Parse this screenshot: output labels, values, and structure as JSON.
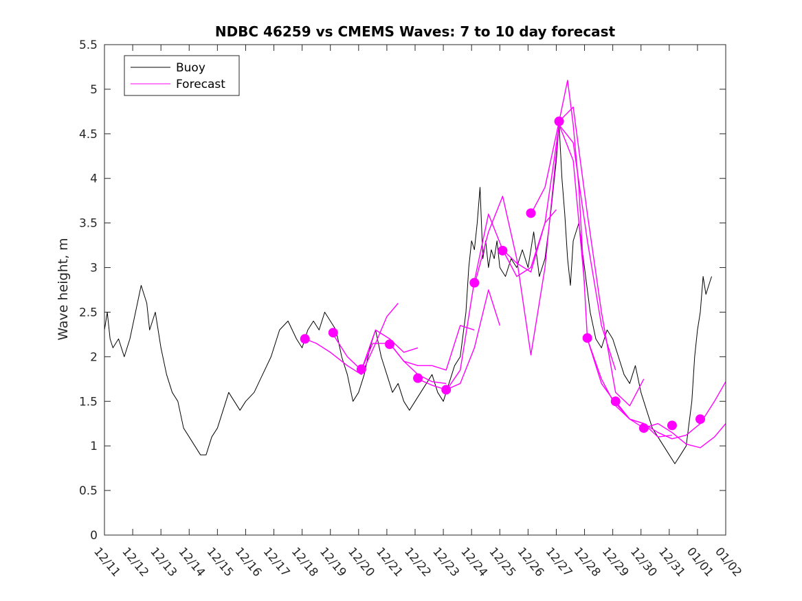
{
  "chart_data": {
    "type": "line",
    "title": "NDBC 46259 vs CMEMS Waves: 7 to 10 day forecast",
    "xlabel": "",
    "ylabel": "Wave height, m",
    "xlim": [
      0,
      22
    ],
    "ylim": [
      0,
      5.5
    ],
    "yticks": [
      0,
      0.5,
      1,
      1.5,
      2,
      2.5,
      3,
      3.5,
      4,
      4.5,
      5,
      5.5
    ],
    "ytick_labels": [
      "0",
      "0.5",
      "1",
      "1.5",
      "2",
      "2.5",
      "3",
      "3.5",
      "4",
      "4.5",
      "5",
      "5.5"
    ],
    "xticks": [
      0,
      1,
      2,
      3,
      4,
      5,
      6,
      7,
      8,
      9,
      10,
      11,
      12,
      13,
      14,
      15,
      16,
      17,
      18,
      19,
      20,
      21,
      22
    ],
    "xtick_labels": [
      "12/11",
      "12/12",
      "12/13",
      "12/14",
      "12/15",
      "12/16",
      "12/17",
      "12/18",
      "12/19",
      "12/20",
      "12/21",
      "12/22",
      "12/23",
      "12/24",
      "12/25",
      "12/26",
      "12/27",
      "12/28",
      "12/29",
      "12/30",
      "12/31",
      "01/01",
      "01/02"
    ],
    "legend": {
      "location": "top-left",
      "entries": [
        "Buoy",
        "Forecast"
      ]
    },
    "colors": {
      "buoy": "#000000",
      "forecast": "#ff00ff"
    },
    "series": [
      {
        "name": "Buoy",
        "x": [
          0.0,
          0.1,
          0.2,
          0.3,
          0.5,
          0.7,
          0.9,
          1.1,
          1.3,
          1.5,
          1.6,
          1.8,
          2.0,
          2.2,
          2.4,
          2.6,
          2.8,
          3.0,
          3.2,
          3.4,
          3.6,
          3.8,
          4.0,
          4.2,
          4.4,
          4.6,
          4.8,
          5.0,
          5.3,
          5.6,
          5.9,
          6.2,
          6.5,
          6.8,
          7.0,
          7.2,
          7.4,
          7.6,
          7.8,
          8.0,
          8.2,
          8.4,
          8.6,
          8.8,
          9.0,
          9.2,
          9.4,
          9.6,
          9.8,
          10.0,
          10.2,
          10.4,
          10.6,
          10.8,
          11.0,
          11.2,
          11.4,
          11.6,
          11.8,
          12.0,
          12.2,
          12.4,
          12.6,
          12.8,
          12.9,
          13.0,
          13.1,
          13.2,
          13.3,
          13.4,
          13.5,
          13.6,
          13.7,
          13.8,
          13.9,
          14.0,
          14.2,
          14.4,
          14.6,
          14.8,
          15.0,
          15.2,
          15.4,
          15.6,
          15.8,
          16.0,
          16.1,
          16.2,
          16.3,
          16.4,
          16.5,
          16.6,
          16.8,
          17.0,
          17.2,
          17.4,
          17.6,
          17.8,
          18.0,
          18.2,
          18.4,
          18.6,
          18.8,
          19.0,
          19.2,
          19.4,
          19.6,
          19.8,
          20.0,
          20.2,
          20.4,
          20.6,
          20.8,
          20.9,
          21.0,
          21.1,
          21.2,
          21.3,
          21.4,
          21.5
        ],
        "y": [
          2.3,
          2.5,
          2.2,
          2.1,
          2.2,
          2.0,
          2.2,
          2.5,
          2.8,
          2.6,
          2.3,
          2.5,
          2.1,
          1.8,
          1.6,
          1.5,
          1.2,
          1.1,
          1.0,
          0.9,
          0.9,
          1.1,
          1.2,
          1.4,
          1.6,
          1.5,
          1.4,
          1.5,
          1.6,
          1.8,
          2.0,
          2.3,
          2.4,
          2.2,
          2.1,
          2.3,
          2.4,
          2.3,
          2.5,
          2.4,
          2.3,
          2.0,
          1.8,
          1.5,
          1.6,
          1.8,
          2.1,
          2.3,
          2.0,
          1.8,
          1.6,
          1.7,
          1.5,
          1.4,
          1.5,
          1.6,
          1.7,
          1.8,
          1.6,
          1.5,
          1.7,
          1.9,
          2.0,
          2.5,
          3.0,
          3.3,
          3.2,
          3.5,
          3.9,
          3.1,
          3.3,
          3.0,
          3.2,
          3.1,
          3.3,
          3.0,
          2.9,
          3.1,
          3.0,
          3.2,
          3.0,
          3.4,
          2.9,
          3.1,
          3.6,
          4.2,
          4.6,
          4.0,
          3.6,
          3.1,
          2.8,
          3.3,
          3.5,
          3.0,
          2.5,
          2.2,
          2.1,
          2.3,
          2.2,
          2.0,
          1.8,
          1.7,
          1.9,
          1.6,
          1.4,
          1.2,
          1.1,
          1.0,
          0.9,
          0.8,
          0.9,
          1.0,
          1.5,
          2.0,
          2.3,
          2.5,
          2.9,
          2.7,
          2.8,
          2.9
        ]
      },
      {
        "name": "Forecast",
        "segments": [
          {
            "x": [
              7.1,
              7.5,
              8.0,
              8.6,
              9.1,
              9.6,
              10.0,
              10.4
            ],
            "y": [
              2.2,
              2.15,
              2.05,
              1.9,
              1.8,
              2.15,
              2.45,
              2.6
            ]
          },
          {
            "x": [
              8.1,
              8.6,
              9.1,
              9.6,
              10.1,
              10.6,
              11.1
            ],
            "y": [
              2.25,
              2.0,
              1.85,
              2.3,
              2.2,
              2.05,
              2.1
            ]
          },
          {
            "x": [
              9.1,
              9.5,
              10.1,
              10.6,
              11.1,
              11.6,
              12.1
            ],
            "y": [
              1.85,
              2.15,
              2.15,
              1.95,
              1.8,
              1.72,
              1.7
            ]
          },
          {
            "x": [
              10.1,
              10.6,
              11.1,
              11.6,
              12.1,
              12.6,
              13.1
            ],
            "y": [
              2.15,
              1.95,
              1.9,
              1.9,
              1.85,
              2.35,
              2.3
            ]
          },
          {
            "x": [
              11.1,
              11.6,
              12.1,
              12.6,
              13.1,
              13.6,
              14.0
            ],
            "y": [
              1.75,
              1.68,
              1.63,
              1.7,
              2.1,
              2.75,
              2.35
            ]
          },
          {
            "x": [
              12.1,
              12.6,
              13.1,
              13.6,
              14.1,
              14.6,
              15.1,
              15.6,
              16.0
            ],
            "y": [
              1.62,
              1.85,
              2.85,
              3.6,
              3.2,
              2.9,
              3.0,
              3.5,
              3.65
            ]
          },
          {
            "x": [
              13.1,
              13.6,
              14.1,
              14.6,
              15.1,
              15.6,
              16.1,
              16.6,
              17.0
            ],
            "y": [
              2.8,
              3.4,
              3.8,
              3.1,
              2.02,
              3.0,
              4.6,
              4.2,
              2.82
            ]
          },
          {
            "x": [
              14.1,
              14.6,
              15.1,
              15.6,
              16.1,
              16.6,
              17.1,
              17.6,
              18.1
            ],
            "y": [
              3.2,
              3.05,
              2.95,
              3.5,
              4.6,
              4.4,
              3.3,
              2.35,
              1.85
            ]
          },
          {
            "x": [
              15.1,
              15.6,
              16.1,
              16.6,
              17.1,
              17.6,
              18.1,
              18.6,
              19.1
            ],
            "y": [
              3.6,
              3.9,
              4.64,
              4.8,
              3.6,
              2.5,
              1.6,
              1.45,
              1.75
            ]
          },
          {
            "x": [
              16.1,
              16.4,
              16.6,
              16.8,
              17.1,
              17.6,
              18.1,
              18.6,
              19.1,
              19.6,
              20.1
            ],
            "y": [
              4.64,
              5.1,
              4.6,
              3.9,
              2.2,
              1.75,
              1.45,
              1.3,
              1.25,
              1.1,
              1.12
            ]
          },
          {
            "x": [
              17.1,
              17.6,
              18.1,
              18.6,
              19.1,
              19.6,
              20.1,
              20.6,
              21.1,
              21.6,
              22.0
            ],
            "y": [
              2.2,
              1.7,
              1.48,
              1.3,
              1.2,
              1.25,
              1.15,
              1.02,
              0.98,
              1.1,
              1.25
            ]
          },
          {
            "x": [
              18.1,
              18.6,
              19.1,
              19.6,
              20.1,
              20.6,
              21.1,
              21.6,
              22.0
            ],
            "y": [
              1.5,
              1.3,
              1.25,
              1.15,
              1.08,
              1.12,
              1.25,
              1.5,
              1.72
            ]
          }
        ],
        "markers": {
          "x": [
            7.1,
            8.1,
            9.1,
            10.1,
            11.1,
            12.1,
            13.1,
            14.1,
            15.1,
            16.1,
            17.1,
            18.1,
            19.1,
            20.1,
            21.1
          ],
          "y": [
            2.2,
            2.27,
            1.86,
            2.14,
            1.76,
            1.63,
            2.83,
            3.19,
            3.61,
            4.64,
            2.21,
            1.5,
            1.2,
            1.23,
            1.3
          ]
        }
      }
    ]
  }
}
